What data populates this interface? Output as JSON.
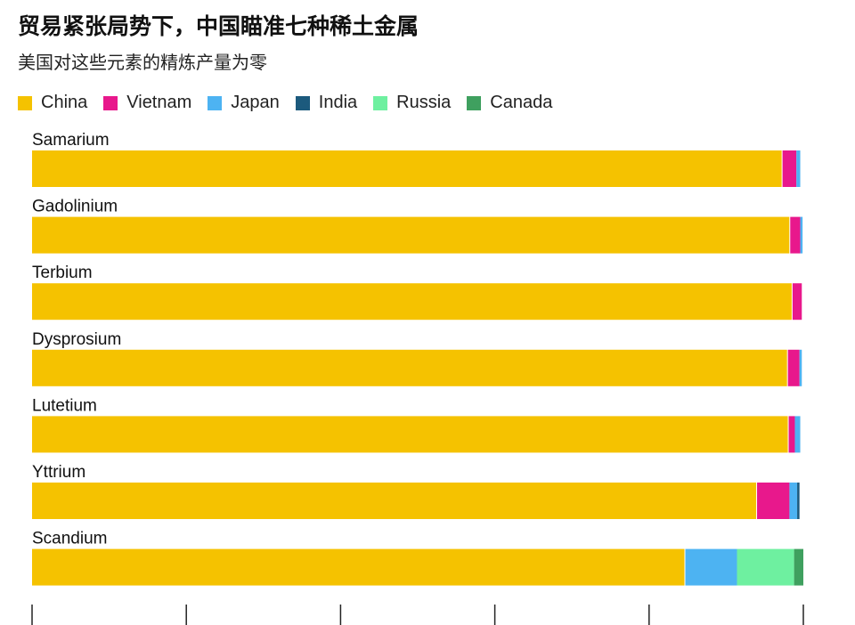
{
  "title": "贸易紧张局势下，中国瞄准七种稀土金属",
  "subtitle": "美国对这些元素的精炼产量为零",
  "chart_data": {
    "type": "bar",
    "orientation": "horizontal",
    "stacked": true,
    "title": "贸易紧张局势下，中国瞄准七种稀土金属",
    "subtitle": "美国对这些元素的精炼产量为零",
    "categories": [
      "Samarium",
      "Gadolinium",
      "Terbium",
      "Dysprosium",
      "Lutetium",
      "Yttrium",
      "Scandium"
    ],
    "series": [
      {
        "name": "China",
        "color": "#F5C200",
        "values": [
          97.3,
          98.3,
          98.6,
          98.0,
          98.1,
          94.0,
          84.7
        ]
      },
      {
        "name": "Vietnam",
        "color": "#E8188C",
        "values": [
          1.8,
          1.3,
          1.2,
          1.5,
          0.8,
          4.2,
          0.0
        ]
      },
      {
        "name": "Japan",
        "color": "#4DB3F2",
        "values": [
          0.5,
          0.3,
          0.0,
          0.3,
          0.7,
          1.0,
          6.7
        ]
      },
      {
        "name": "India",
        "color": "#1C5A7D",
        "values": [
          0.0,
          0.0,
          0.0,
          0.0,
          0.0,
          0.3,
          0.0
        ]
      },
      {
        "name": "Russia",
        "color": "#6EF0A0",
        "values": [
          0.0,
          0.0,
          0.0,
          0.0,
          0.0,
          0.0,
          7.4
        ]
      },
      {
        "name": "Canada",
        "color": "#3FA05F",
        "values": [
          0.0,
          0.0,
          0.0,
          0.0,
          0.0,
          0.0,
          1.2
        ]
      }
    ],
    "xlim": [
      0,
      100
    ],
    "xticks": [
      0,
      20,
      40,
      60,
      80,
      100
    ],
    "tick_labels_visible": false,
    "legend_position": "top-left",
    "grid": false
  }
}
